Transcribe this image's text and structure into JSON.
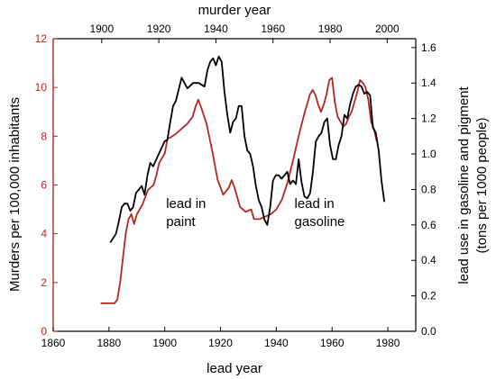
{
  "chart_data": {
    "type": "line",
    "title": "",
    "axes": {
      "bottom": {
        "label": "lead year",
        "range": [
          1860,
          1990
        ],
        "ticks": [
          1860,
          1880,
          1900,
          1920,
          1940,
          1960,
          1980
        ],
        "color": "#000000"
      },
      "top": {
        "label": "murder year",
        "range": [
          1883,
          2010
        ],
        "ticks": [
          1900,
          1920,
          1940,
          1960,
          1980,
          2000
        ],
        "color": "#000000"
      },
      "left": {
        "label": "Murders per 100,000 inhabitants",
        "range": [
          0,
          12
        ],
        "ticks": [
          0,
          2,
          4,
          6,
          8,
          10,
          12
        ],
        "color": "#b5261e"
      },
      "right": {
        "label_line1": "lead use in gasoline and pigment",
        "label_line2": "(tons per 1000 people)",
        "range": [
          0,
          1.65
        ],
        "ticks": [
          0.0,
          0.2,
          0.4,
          0.6,
          0.8,
          1.0,
          1.2,
          1.4,
          1.6
        ],
        "color": "#000000"
      }
    },
    "series": [
      {
        "x_axis": "bottom",
        "y_axis": "left",
        "color": "#b5261e",
        "x": [
          1877,
          1882,
          1883,
          1884,
          1885,
          1886,
          1887,
          1888,
          1889,
          1890,
          1892,
          1894,
          1896,
          1897,
          1898,
          1900,
          1901,
          1902,
          1904,
          1906,
          1908,
          1910,
          1911,
          1912,
          1913,
          1915,
          1917,
          1919,
          1921,
          1923,
          1924,
          1925,
          1927,
          1929,
          1931,
          1932,
          1934,
          1936,
          1938,
          1940,
          1942,
          1944,
          1946,
          1948,
          1950,
          1951,
          1952,
          1953,
          1954,
          1955,
          1956,
          1957,
          1958,
          1959,
          1960,
          1961,
          1962,
          1963,
          1964,
          1965,
          1966,
          1967,
          1968,
          1969,
          1970,
          1971,
          1972,
          1973,
          1974,
          1975,
          1976
        ],
        "y": [
          1.15,
          1.15,
          1.3,
          2.0,
          3.0,
          4.0,
          4.6,
          4.8,
          4.4,
          4.8,
          5.2,
          5.8,
          6.0,
          6.4,
          6.9,
          7.3,
          7.9,
          7.95,
          8.1,
          8.3,
          8.5,
          8.8,
          9.2,
          9.5,
          9.2,
          8.5,
          7.4,
          6.2,
          5.6,
          5.9,
          6.2,
          5.9,
          5.1,
          4.9,
          5.0,
          4.6,
          4.6,
          4.7,
          4.8,
          5.0,
          5.4,
          6.1,
          7.0,
          8.0,
          8.9,
          9.3,
          9.7,
          9.9,
          9.7,
          9.3,
          9.0,
          9.3,
          9.7,
          10.3,
          10.4,
          9.4,
          8.8,
          8.6,
          8.4,
          8.5,
          8.8,
          9.0,
          9.4,
          9.8,
          10.3,
          10.2,
          10.0,
          9.5,
          8.6,
          8.3,
          7.8
        ]
      },
      {
        "x_axis": "top",
        "y_axis": "right",
        "color": "#000000",
        "x": [
          1903,
          1905,
          1906,
          1907,
          1908,
          1909,
          1910,
          1911,
          1912,
          1914,
          1915,
          1916,
          1917,
          1918,
          1920,
          1922,
          1923,
          1924,
          1925,
          1926,
          1928,
          1930,
          1932,
          1934,
          1936,
          1937,
          1938,
          1939,
          1940,
          1941,
          1942,
          1943,
          1944,
          1945,
          1946,
          1947,
          1948,
          1949,
          1950,
          1951,
          1952,
          1953,
          1954,
          1955,
          1956,
          1957,
          1958,
          1959,
          1960,
          1961,
          1962,
          1963,
          1964,
          1965,
          1966,
          1967,
          1968,
          1969,
          1970,
          1971,
          1972,
          1973,
          1974,
          1975,
          1976,
          1977,
          1978,
          1979,
          1980,
          1981,
          1982,
          1983,
          1984,
          1985,
          1986,
          1987,
          1988,
          1989,
          1990,
          1991,
          1992,
          1993,
          1994,
          1995,
          1996,
          1997,
          1998,
          1999
        ],
        "y": [
          0.5,
          0.55,
          0.62,
          0.7,
          0.72,
          0.72,
          0.68,
          0.7,
          0.78,
          0.82,
          0.77,
          0.88,
          0.95,
          0.93,
          1.0,
          1.07,
          1.08,
          1.18,
          1.27,
          1.3,
          1.43,
          1.37,
          1.4,
          1.4,
          1.38,
          1.47,
          1.52,
          1.54,
          1.5,
          1.55,
          1.52,
          1.35,
          1.22,
          1.12,
          1.18,
          1.2,
          1.27,
          1.27,
          1.1,
          1.02,
          1.0,
          0.93,
          0.82,
          0.74,
          0.7,
          0.63,
          0.6,
          0.7,
          0.85,
          0.88,
          0.88,
          0.86,
          0.88,
          0.9,
          0.83,
          0.85,
          0.83,
          0.97,
          0.84,
          0.76,
          0.75,
          0.78,
          0.9,
          1.07,
          1.1,
          1.12,
          1.18,
          1.2,
          1.05,
          0.97,
          0.97,
          1.05,
          1.1,
          1.22,
          1.2,
          1.28,
          1.34,
          1.38,
          1.39,
          1.38,
          1.34,
          1.35,
          1.33,
          1.15,
          1.12,
          1.02,
          0.85,
          0.73
        ]
      }
    ],
    "annotations": [
      {
        "lines": [
          "lead in",
          "paint"
        ],
        "x": 1900.5,
        "y": 5.05
      },
      {
        "lines": [
          "lead in",
          "gasoline"
        ],
        "x": 1946.5,
        "y": 5.05
      }
    ]
  }
}
